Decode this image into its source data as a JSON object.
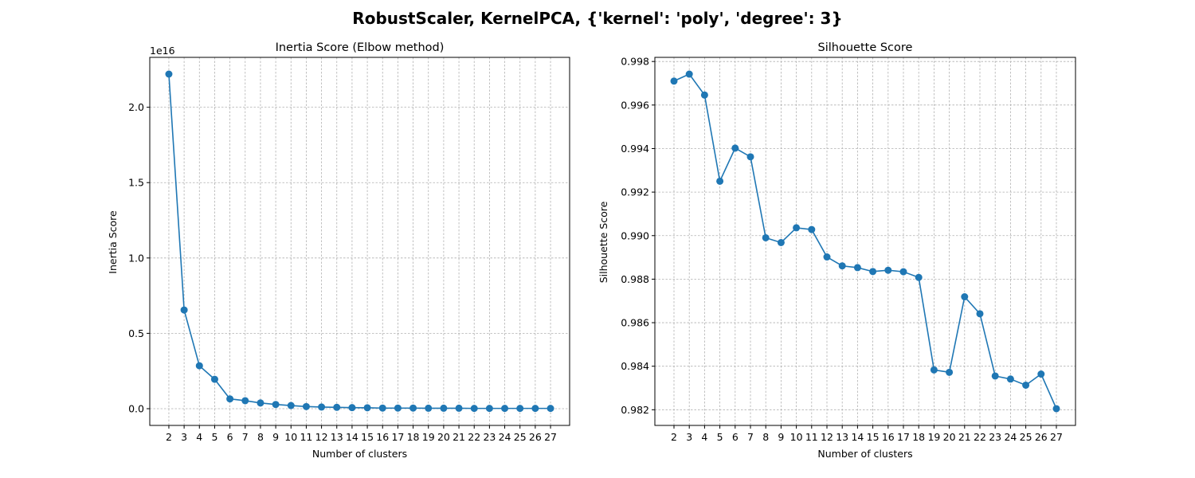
{
  "figure_title": "RobustScaler, KernelPCA, {'kernel': 'poly', 'degree': 3}",
  "colors": {
    "series": "#1f77b4"
  },
  "chart_data": [
    {
      "type": "line",
      "title": "Inertia Score (Elbow method)",
      "xlabel": "Number of clusters",
      "ylabel": "Inertia Score",
      "y_offset_label": "1e16",
      "x": [
        2,
        3,
        4,
        5,
        6,
        7,
        8,
        9,
        10,
        11,
        12,
        13,
        14,
        15,
        16,
        17,
        18,
        19,
        20,
        21,
        22,
        23,
        24,
        25,
        26,
        27
      ],
      "x_tick_labels": [
        "2",
        "3",
        "4",
        "5",
        "6",
        "7",
        "8",
        "9",
        "10",
        "11",
        "12",
        "13",
        "14",
        "15",
        "16",
        "17",
        "18",
        "19",
        "20",
        "21",
        "22",
        "23",
        "24",
        "25",
        "26",
        "27"
      ],
      "values": [
        2.22,
        0.655,
        0.285,
        0.195,
        0.065,
        0.053,
        0.038,
        0.028,
        0.021,
        0.014,
        0.011,
        0.009,
        0.007,
        0.006,
        0.004,
        0.004,
        0.004,
        0.003,
        0.003,
        0.003,
        0.002,
        0.002,
        0.002,
        0.002,
        0.002,
        0.002
      ],
      "ylim": [
        -0.111,
        2.331
      ],
      "y_ticks": [
        0.0,
        0.5,
        1.0,
        1.5,
        2.0
      ],
      "y_tick_labels": [
        "0.0",
        "0.5",
        "1.0",
        "1.5",
        "2.0"
      ],
      "grid": true,
      "marker": "circle"
    },
    {
      "type": "line",
      "title": "Silhouette Score",
      "xlabel": "Number of clusters",
      "ylabel": "Silhouette Score",
      "x": [
        2,
        3,
        4,
        5,
        6,
        7,
        8,
        9,
        10,
        11,
        12,
        13,
        14,
        15,
        16,
        17,
        18,
        19,
        20,
        21,
        22,
        23,
        24,
        25,
        26,
        27
      ],
      "x_tick_labels": [
        "2",
        "3",
        "4",
        "5",
        "6",
        "7",
        "8",
        "9",
        "10",
        "11",
        "12",
        "13",
        "14",
        "15",
        "16",
        "17",
        "18",
        "19",
        "20",
        "21",
        "22",
        "23",
        "24",
        "25",
        "26",
        "27"
      ],
      "values": [
        0.9971,
        0.99742,
        0.99646,
        0.9925,
        0.99402,
        0.99362,
        0.9899,
        0.98968,
        0.99036,
        0.99028,
        0.98902,
        0.98861,
        0.98853,
        0.98835,
        0.98841,
        0.98834,
        0.98808,
        0.98383,
        0.98372,
        0.98719,
        0.98641,
        0.98355,
        0.98341,
        0.98313,
        0.98364,
        0.98205
      ],
      "ylim": [
        0.98128,
        0.99819
      ],
      "y_ticks": [
        0.982,
        0.984,
        0.986,
        0.988,
        0.99,
        0.992,
        0.994,
        0.996,
        0.998
      ],
      "y_tick_labels": [
        "0.982",
        "0.984",
        "0.986",
        "0.988",
        "0.990",
        "0.992",
        "0.994",
        "0.996",
        "0.998"
      ],
      "grid": true,
      "marker": "circle"
    }
  ]
}
